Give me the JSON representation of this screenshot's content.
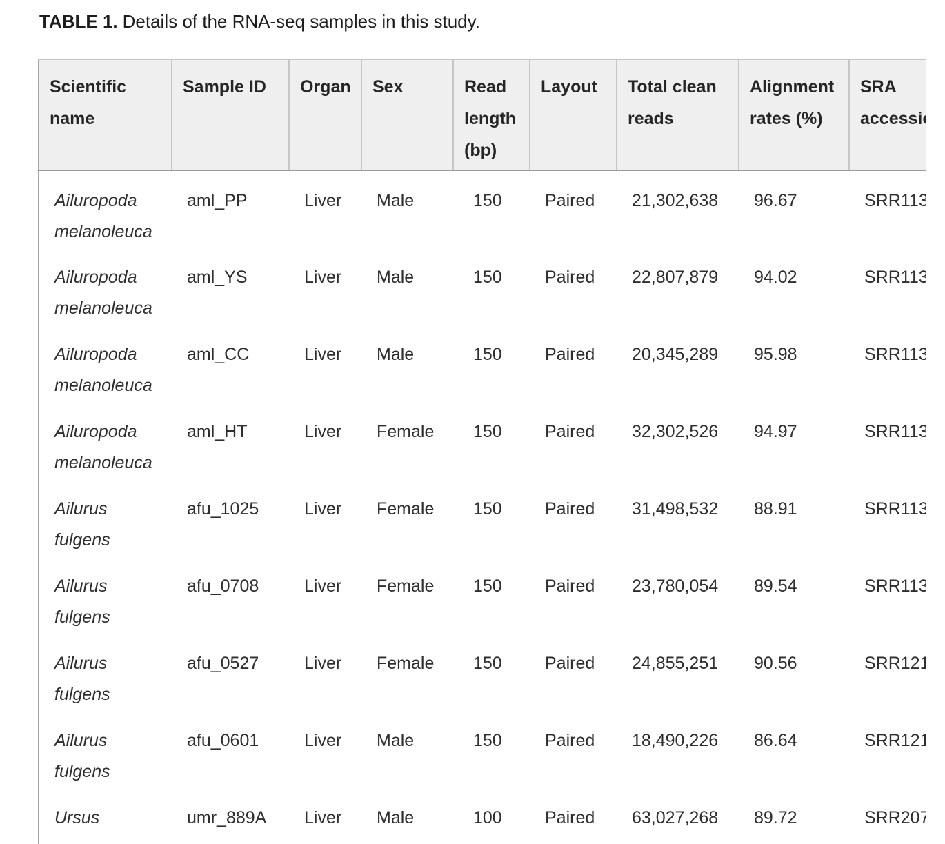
{
  "title": {
    "label": "TABLE 1.",
    "text": "Details of the RNA-seq samples in this study."
  },
  "table": {
    "columns": [
      {
        "key": "scientific_name",
        "label": "Scientific name"
      },
      {
        "key": "sample_id",
        "label": "Sample ID"
      },
      {
        "key": "organ",
        "label": "Organ"
      },
      {
        "key": "sex",
        "label": "Sex"
      },
      {
        "key": "read_length",
        "label": "Read length (bp)"
      },
      {
        "key": "layout",
        "label": "Layout"
      },
      {
        "key": "total_clean_reads",
        "label": "Total clean reads"
      },
      {
        "key": "alignment_rate",
        "label": "Alignment rates (%)"
      },
      {
        "key": "sra",
        "label": "SRA accession"
      }
    ],
    "rows": [
      {
        "name_line1": "Ailuropoda",
        "name_line2": "melanoleuca",
        "sample_id": "aml_PP",
        "organ": "Liver",
        "sex": "Male",
        "read_length": "150",
        "layout": "Paired",
        "total_clean_reads": "21,302,638",
        "alignment_rate": "96.67",
        "sra": "SRR113"
      },
      {
        "name_line1": "Ailuropoda",
        "name_line2": "melanoleuca",
        "sample_id": "aml_YS",
        "organ": "Liver",
        "sex": "Male",
        "read_length": "150",
        "layout": "Paired",
        "total_clean_reads": "22,807,879",
        "alignment_rate": "94.02",
        "sra": "SRR113"
      },
      {
        "name_line1": "Ailuropoda",
        "name_line2": "melanoleuca",
        "sample_id": "aml_CC",
        "organ": "Liver",
        "sex": "Male",
        "read_length": "150",
        "layout": "Paired",
        "total_clean_reads": "20,345,289",
        "alignment_rate": "95.98",
        "sra": "SRR113"
      },
      {
        "name_line1": "Ailuropoda",
        "name_line2": "melanoleuca",
        "sample_id": "aml_HT",
        "organ": "Liver",
        "sex": "Female",
        "read_length": "150",
        "layout": "Paired",
        "total_clean_reads": "32,302,526",
        "alignment_rate": "94.97",
        "sra": "SRR113"
      },
      {
        "name_line1": "Ailurus",
        "name_line2": "fulgens",
        "sample_id": "afu_1025",
        "organ": "Liver",
        "sex": "Female",
        "read_length": "150",
        "layout": "Paired",
        "total_clean_reads": "31,498,532",
        "alignment_rate": "88.91",
        "sra": "SRR113"
      },
      {
        "name_line1": "Ailurus",
        "name_line2": "fulgens",
        "sample_id": "afu_0708",
        "organ": "Liver",
        "sex": "Female",
        "read_length": "150",
        "layout": "Paired",
        "total_clean_reads": "23,780,054",
        "alignment_rate": "89.54",
        "sra": "SRR113"
      },
      {
        "name_line1": "Ailurus",
        "name_line2": "fulgens",
        "sample_id": "afu_0527",
        "organ": "Liver",
        "sex": "Female",
        "read_length": "150",
        "layout": "Paired",
        "total_clean_reads": "24,855,251",
        "alignment_rate": "90.56",
        "sra": "SRR121"
      },
      {
        "name_line1": "Ailurus",
        "name_line2": "fulgens",
        "sample_id": "afu_0601",
        "organ": "Liver",
        "sex": "Male",
        "read_length": "150",
        "layout": "Paired",
        "total_clean_reads": "18,490,226",
        "alignment_rate": "86.64",
        "sra": "SRR121"
      },
      {
        "name_line1": "Ursus",
        "name_line2": "",
        "sample_id": "umr_889A",
        "organ": "Liver",
        "sex": "Male",
        "read_length": "100",
        "layout": "Paired",
        "total_clean_reads": "63,027,268",
        "alignment_rate": "89.72",
        "sra": "SRR207"
      }
    ]
  },
  "colors": {
    "header_bg": "#efefef",
    "border_light": "#c6c6c6",
    "border_dark": "#9b9b9b",
    "border_left": "#a5a5a5",
    "text": "#2e2e2e"
  }
}
